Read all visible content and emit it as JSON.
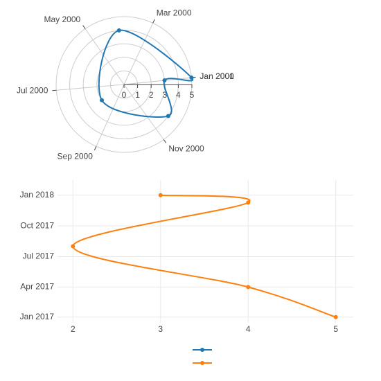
{
  "chart_data": [
    {
      "type": "polar-line",
      "angular_axis": {
        "kind": "date",
        "period_start": "2000-01-01",
        "period_end": "2001-01-01",
        "direction": "counterclockwise",
        "tick_labels": [
          "Jan 2000",
          "Mar 2000",
          "May 2000",
          "Jul 2000",
          "Sep 2000",
          "Nov 2000",
          "Jan 2001"
        ],
        "ticks": [
          "2000-01-01",
          "2000-03-01",
          "2000-05-01",
          "2000-07-01",
          "2000-09-01",
          "2000-11-01",
          "2001-01-01"
        ]
      },
      "radial_axis": {
        "range": [
          0,
          5
        ],
        "tick_labels": [
          "0",
          "1",
          "2",
          "3",
          "4",
          "5"
        ]
      },
      "series": [
        {
          "color": "#1f77b4",
          "points": [
            {
              "date": "2000-01-01",
              "r": 5
            },
            {
              "date": "2000-04-01",
              "r": 4
            },
            {
              "date": "2000-08-01",
              "r": 2
            },
            {
              "date": "2000-11-20",
              "r": 4
            },
            {
              "date": "2001-01-01",
              "r": 3
            }
          ]
        }
      ]
    },
    {
      "type": "line",
      "x_axis": {
        "range": [
          1.8,
          5.2
        ],
        "tick_labels": [
          "2",
          "3",
          "4",
          "5"
        ],
        "ticks": [
          2,
          3,
          4,
          5
        ]
      },
      "y_axis": {
        "kind": "date",
        "range": [
          "2016-12-15",
          "2018-02-15"
        ],
        "tick_labels": [
          "Jan 2017",
          "Apr 2017",
          "Jul 2017",
          "Oct 2017",
          "Jan 2018"
        ],
        "ticks": [
          "2017-01-01",
          "2017-04-01",
          "2017-07-01",
          "2017-10-01",
          "2018-01-01"
        ]
      },
      "series": [
        {
          "color": "#ff7f0e",
          "x": [
            5,
            4,
            2,
            4,
            3
          ],
          "y": [
            "2017-01-01",
            "2017-04-01",
            "2017-08-01",
            "2017-12-10",
            "2018-01-01"
          ]
        }
      ]
    }
  ],
  "legend": {
    "placement": "bottom-center",
    "entries": [
      {
        "color": "#1f77b4",
        "label": ""
      },
      {
        "color": "#ff7f0e",
        "label": ""
      }
    ]
  }
}
